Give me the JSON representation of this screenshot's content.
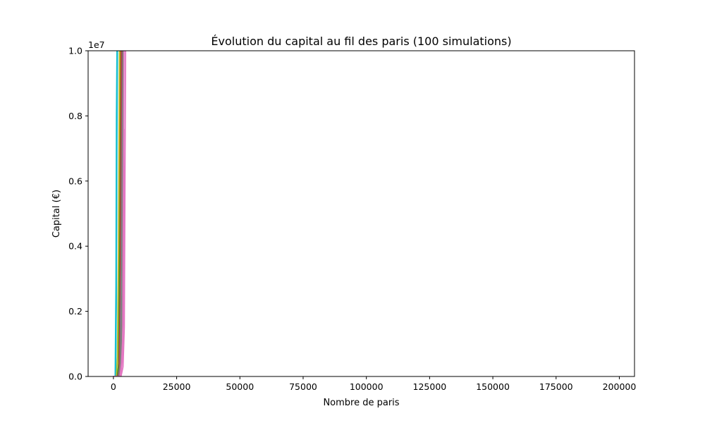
{
  "chart_data": {
    "type": "line",
    "title": "Évolution du capital au fil des paris (100 simulations)",
    "xlabel": "Nombre de paris",
    "ylabel": "Capital (€)",
    "y_offset_label": "1e7",
    "xlim": [
      -10000,
      206000
    ],
    "ylim": [
      0,
      10000000
    ],
    "x_ticks": [
      0,
      25000,
      50000,
      75000,
      100000,
      125000,
      150000,
      175000,
      200000
    ],
    "x_tick_labels": [
      "0",
      "25000",
      "50000",
      "75000",
      "100000",
      "125000",
      "150000",
      "175000",
      "200000"
    ],
    "y_ticks": [
      0,
      2000000,
      4000000,
      6000000,
      8000000,
      10000000
    ],
    "y_tick_labels": [
      "0.0",
      "0.2",
      "0.4",
      "0.6",
      "0.8",
      "1.0"
    ],
    "grid": false,
    "legend": "none",
    "series": [
      {
        "color": "#1f77b4",
        "x": [
          0,
          800,
          1100,
          1300,
          1500
        ],
        "y": [
          0,
          0,
          2200000,
          7000000,
          10000000
        ]
      },
      {
        "color": "#17becf",
        "x": [
          0,
          700,
          1000,
          1200,
          1400
        ],
        "y": [
          0,
          0,
          2800000,
          8000000,
          10000000
        ]
      },
      {
        "color": "#17becf",
        "x": [
          0,
          900,
          1150,
          1350,
          1600
        ],
        "y": [
          0,
          0,
          2400000,
          6500000,
          10000000
        ]
      },
      {
        "color": "#bcbd22",
        "x": [
          0,
          1200,
          1600,
          2000,
          2400
        ],
        "y": [
          0,
          0,
          600000,
          4000000,
          10000000
        ]
      },
      {
        "color": "#ff7f0e",
        "x": [
          0,
          1500,
          2000,
          2400,
          2800
        ],
        "y": [
          0,
          0,
          300000,
          3500000,
          10000000
        ]
      },
      {
        "color": "#2ca02c",
        "x": [
          0,
          1600,
          2100,
          2600,
          3000
        ],
        "y": [
          0,
          0,
          400000,
          4500000,
          10000000
        ]
      },
      {
        "color": "#d62728",
        "x": [
          0,
          1800,
          2300,
          2800,
          3200
        ],
        "y": [
          0,
          0,
          200000,
          3000000,
          10000000
        ]
      },
      {
        "color": "#9467bd",
        "x": [
          0,
          2000,
          2600,
          3100,
          3500
        ],
        "y": [
          0,
          0,
          300000,
          3800000,
          10000000
        ]
      },
      {
        "color": "#8c564b",
        "x": [
          0,
          2100,
          2700,
          3200,
          3600
        ],
        "y": [
          0,
          0,
          250000,
          4200000,
          10000000
        ]
      },
      {
        "color": "#7f7f7f",
        "x": [
          0,
          2200,
          2800,
          3300,
          3800
        ],
        "y": [
          0,
          0,
          500000,
          5000000,
          10000000
        ]
      },
      {
        "color": "#7f7f7f",
        "x": [
          0,
          2400,
          3000,
          3500,
          4000
        ],
        "y": [
          0,
          0,
          400000,
          2500000,
          9000000
        ]
      },
      {
        "color": "#e377c2",
        "x": [
          0,
          2600,
          3200,
          3700,
          4200
        ],
        "y": [
          0,
          0,
          400000,
          1200000,
          10000000
        ]
      },
      {
        "color": "#e377c2",
        "x": [
          0,
          2800,
          3500,
          4000,
          4600
        ],
        "y": [
          0,
          0,
          500000,
          2200000,
          7600000
        ]
      },
      {
        "color": "#e377c2",
        "x": [
          0,
          3000,
          3800,
          4300,
          4800
        ],
        "y": [
          0,
          0,
          300000,
          1500000,
          10000000
        ]
      }
    ]
  }
}
